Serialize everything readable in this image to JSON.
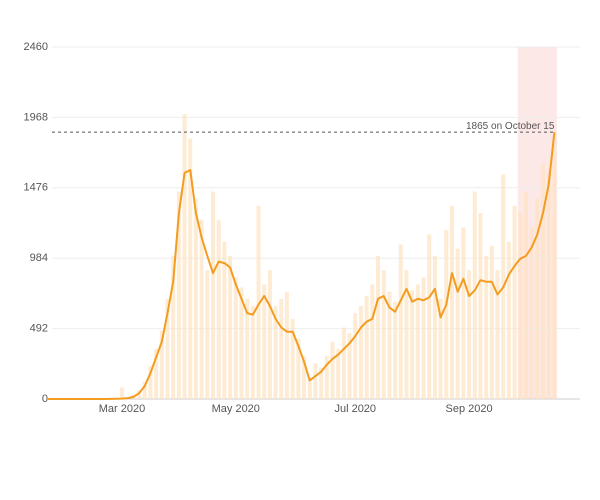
{
  "chart_data": {
    "type": "bar-line",
    "categories": [
      null,
      null,
      null,
      null,
      null,
      null,
      null,
      null,
      null,
      null,
      null,
      null,
      null,
      "Mar 2020",
      null,
      null,
      null,
      null,
      null,
      null,
      null,
      null,
      null,
      null,
      null,
      null,
      null,
      null,
      null,
      null,
      null,
      null,
      null,
      "May 2020",
      null,
      null,
      null,
      null,
      null,
      null,
      null,
      null,
      null,
      null,
      null,
      null,
      null,
      null,
      null,
      null,
      null,
      null,
      null,
      null,
      "Jul 2020",
      null,
      null,
      null,
      null,
      null,
      null,
      null,
      null,
      null,
      null,
      null,
      null,
      null,
      null,
      null,
      null,
      null,
      null,
      null,
      "Sep 2020",
      null,
      null,
      null,
      null,
      null,
      null,
      null,
      null,
      null,
      null,
      null,
      null,
      null,
      null,
      null
    ],
    "series": [
      {
        "type": "bar",
        "color": "#fde3c2",
        "values": [
          0,
          0,
          0,
          0,
          0,
          0,
          0,
          0,
          0,
          0,
          0,
          0,
          0,
          80,
          10,
          30,
          60,
          120,
          230,
          350,
          480,
          700,
          1000,
          1450,
          1990,
          1820,
          1400,
          1250,
          900,
          1450,
          1250,
          1100,
          1000,
          850,
          780,
          700,
          650,
          1350,
          800,
          900,
          650,
          700,
          750,
          560,
          420,
          300,
          150,
          250,
          220,
          300,
          400,
          350,
          500,
          460,
          600,
          650,
          720,
          800,
          1000,
          900,
          750,
          680,
          1080,
          900,
          760,
          800,
          850,
          1150,
          1000,
          700,
          1180,
          1350,
          1050,
          1200,
          900,
          1450,
          1300,
          1000,
          1070,
          900,
          1570,
          1100,
          1350,
          1300,
          1450,
          1200,
          1400,
          1650,
          1600,
          1850
        ]
      },
      {
        "type": "line",
        "color": "#f39c1f",
        "values": [
          0,
          0,
          0,
          0,
          0,
          0,
          0,
          0,
          0,
          0,
          0,
          1,
          2,
          3,
          6,
          15,
          40,
          90,
          180,
          290,
          400,
          600,
          820,
          1300,
          1580,
          1600,
          1300,
          1130,
          1000,
          880,
          960,
          950,
          920,
          800,
          700,
          600,
          590,
          660,
          720,
          650,
          560,
          500,
          470,
          470,
          370,
          260,
          130,
          160,
          190,
          240,
          280,
          310,
          350,
          390,
          440,
          500,
          540,
          560,
          700,
          720,
          640,
          610,
          690,
          770,
          680,
          700,
          690,
          710,
          770,
          570,
          660,
          880,
          750,
          840,
          720,
          760,
          830,
          820,
          820,
          730,
          780,
          870,
          930,
          980,
          1000,
          1060,
          1150,
          1300,
          1500,
          1865
        ]
      }
    ],
    "ylim": [
      0,
      2460
    ],
    "yticks": [
      0,
      492,
      984,
      1476,
      1968,
      2460
    ],
    "grid": true,
    "annotation": {
      "text": "1865 on October 15",
      "value": 1865
    }
  }
}
